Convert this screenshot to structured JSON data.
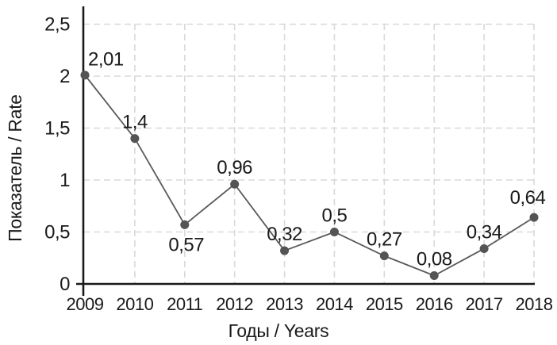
{
  "chart_data": {
    "type": "line",
    "title": "",
    "x": [
      "2009",
      "2010",
      "2011",
      "2012",
      "2013",
      "2014",
      "2015",
      "2016",
      "2017",
      "2018"
    ],
    "series": [
      {
        "name": "Rate",
        "values": [
          2.01,
          1.4,
          0.57,
          0.96,
          0.32,
          0.5,
          0.27,
          0.08,
          0.34,
          0.64
        ],
        "point_labels": [
          "2,01",
          "1,4",
          "0,57",
          "0,96",
          "0,32",
          "0,5",
          "0,27",
          "0,08",
          "0,34",
          "0,64"
        ]
      }
    ],
    "xlabel": "Годы / Years",
    "ylabel": "Показатель / Rate",
    "ylim": [
      0,
      2.5
    ],
    "ytick_values": [
      0,
      0.5,
      1,
      1.5,
      2,
      2.5
    ],
    "ytick_labels": [
      "0",
      "0,5",
      "1",
      "1,5",
      "2",
      "2,5"
    ],
    "grid": "dashed-both",
    "legend": "none",
    "colors": {
      "line": "#595959",
      "marker": "#545454",
      "grid": "#d9d9d9",
      "axis": "#1a1a1a",
      "text": "#1a1a1a",
      "background": "#ffffff"
    }
  }
}
